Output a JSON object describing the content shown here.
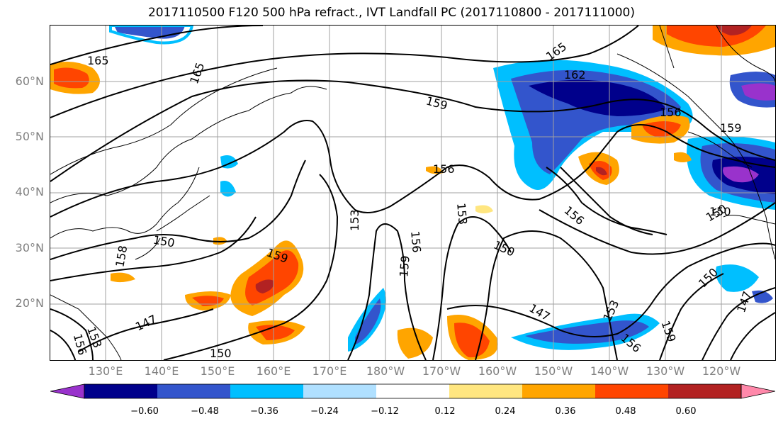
{
  "title": "2017110500 F120 500 hPa refract., IVT Landfall PC (2017110800 - 2017111000)",
  "lat_labels": [
    "60°N",
    "50°N",
    "40°N",
    "30°N",
    "20°N"
  ],
  "lon_labels": [
    "130°E",
    "140°E",
    "150°E",
    "160°E",
    "170°E",
    "180°W",
    "170°W",
    "160°W",
    "150°W",
    "140°W",
    "130°W",
    "120°W"
  ],
  "contour_labels": [
    "165",
    "165",
    "165",
    "162",
    "159",
    "156",
    "159",
    "156",
    "156",
    "153",
    "153",
    "156",
    "159",
    "150",
    "150",
    "150",
    "150",
    "159",
    "158",
    "147",
    "147",
    "153",
    "156",
    "159",
    "150",
    "147",
    "153",
    "156",
    "150"
  ],
  "colorbar": {
    "ticks": [
      "−0.60",
      "−0.48",
      "−0.36",
      "−0.24",
      "−0.12",
      "0.12",
      "0.24",
      "0.36",
      "0.48",
      "0.60"
    ],
    "colors": [
      "#9932cc",
      "#00008b",
      "#3355cc",
      "#00bfff",
      "#b0e0ff",
      "#ffffff",
      "#ffe680",
      "#ffa500",
      "#ff4500",
      "#b22222",
      "#ff88aa"
    ]
  }
}
